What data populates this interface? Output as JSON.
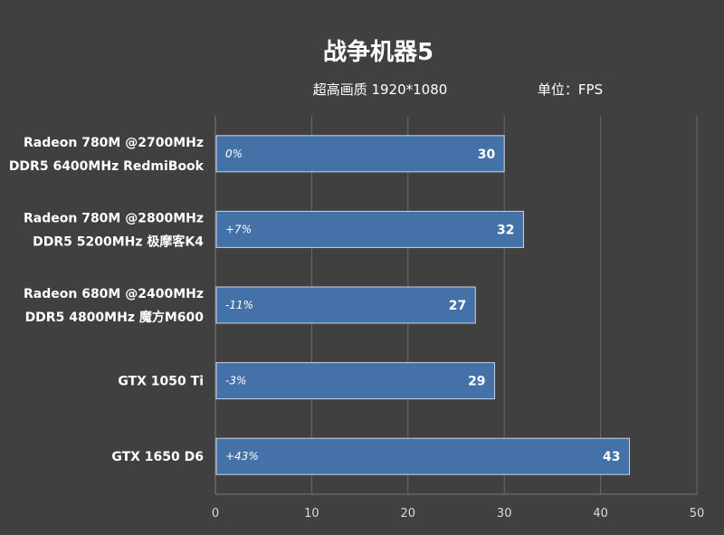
{
  "chart_data": {
    "type": "bar",
    "orientation": "horizontal",
    "title": "战争机器5",
    "subtitle_left": "超高画质 1920*1080",
    "subtitle_right": "单位：FPS",
    "categories": [
      [
        "Radeon 780M @2700MHz",
        "DDR5 6400MHz RedmiBook"
      ],
      [
        "Radeon 780M @2800MHz",
        "DDR5 5200MHz 极摩客K4"
      ],
      [
        "Radeon 680M @2400MHz",
        "DDR5 4800MHz 魔方M600"
      ],
      [
        "GTX 1050 Ti"
      ],
      [
        "GTX 1650 D6"
      ]
    ],
    "values": [
      30,
      32,
      27,
      29,
      43
    ],
    "deltas": [
      "0%",
      "+7%",
      "-11%",
      "-3%",
      "+43%"
    ],
    "xlim": [
      0,
      50
    ],
    "xticks": [
      0,
      10,
      20,
      30,
      40,
      50
    ],
    "grid": true,
    "colors": {
      "bar": "#4472a8",
      "background": "#404040"
    }
  }
}
